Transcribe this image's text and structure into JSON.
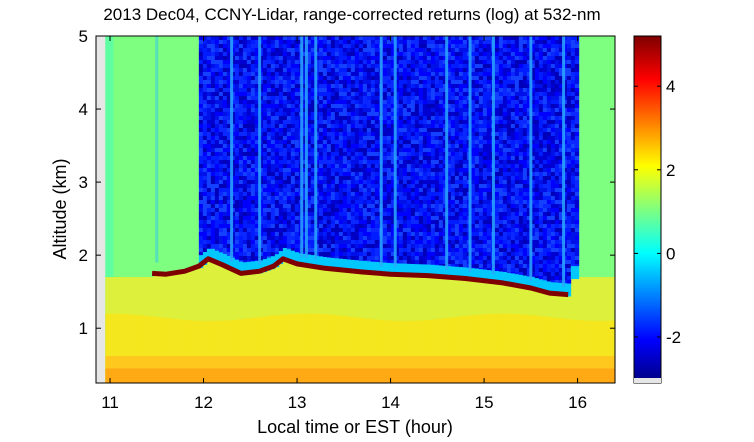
{
  "chart_data": {
    "type": "heatmap",
    "title": "2013 Dec04, CCNY-Lidar, range-corrected returns (log) at 532-nm",
    "xlabel": "Local time or EST (hour)",
    "ylabel": "Altitude (km)",
    "xlim": [
      10.85,
      16.4
    ],
    "ylim": [
      0.25,
      5.0
    ],
    "x_ticks": [
      11,
      12,
      13,
      14,
      15,
      16
    ],
    "y_ticks": [
      1,
      2,
      3,
      4,
      5
    ],
    "colorbar": {
      "range": [
        -3.1,
        5.2
      ],
      "ticks": [
        -2,
        0,
        2,
        4
      ],
      "colormap": "jet",
      "colors": [
        "#00007f",
        "#0000ff",
        "#007fff",
        "#00ffff",
        "#7fff7f",
        "#ffff00",
        "#ff7f00",
        "#ff0000",
        "#7f0000"
      ]
    },
    "data_start_hour": 10.95,
    "boundary_layer_top": [
      {
        "x": 11.45,
        "y": 1.75
      },
      {
        "x": 11.6,
        "y": 1.74
      },
      {
        "x": 11.8,
        "y": 1.78
      },
      {
        "x": 11.95,
        "y": 1.85
      },
      {
        "x": 12.05,
        "y": 1.95
      },
      {
        "x": 12.2,
        "y": 1.87
      },
      {
        "x": 12.4,
        "y": 1.75
      },
      {
        "x": 12.6,
        "y": 1.78
      },
      {
        "x": 12.75,
        "y": 1.85
      },
      {
        "x": 12.85,
        "y": 1.95
      },
      {
        "x": 13.0,
        "y": 1.88
      },
      {
        "x": 13.3,
        "y": 1.82
      },
      {
        "x": 13.7,
        "y": 1.77
      },
      {
        "x": 14.0,
        "y": 1.74
      },
      {
        "x": 14.4,
        "y": 1.72
      },
      {
        "x": 14.8,
        "y": 1.68
      },
      {
        "x": 15.2,
        "y": 1.62
      },
      {
        "x": 15.5,
        "y": 1.55
      },
      {
        "x": 15.7,
        "y": 1.48
      },
      {
        "x": 15.9,
        "y": 1.46
      }
    ],
    "high_noise_period": [
      11.95,
      16.0
    ],
    "bright_vertical_streaks": [
      11.5,
      12.3,
      12.6,
      13.05,
      13.1,
      13.2,
      13.9,
      14.05,
      14.6,
      14.85,
      15.1,
      15.5,
      15.85
    ]
  }
}
